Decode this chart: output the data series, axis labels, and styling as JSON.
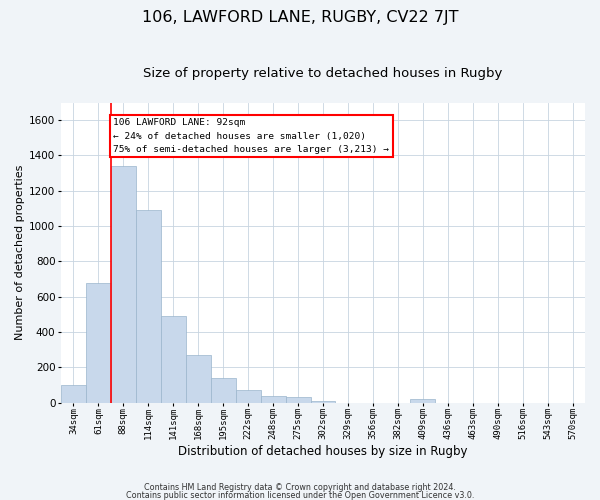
{
  "title1": "106, LAWFORD LANE, RUGBY, CV22 7JT",
  "title2": "Size of property relative to detached houses in Rugby",
  "xlabel": "Distribution of detached houses by size in Rugby",
  "ylabel": "Number of detached properties",
  "categories": [
    "34sqm",
    "61sqm",
    "88sqm",
    "114sqm",
    "141sqm",
    "168sqm",
    "195sqm",
    "222sqm",
    "248sqm",
    "275sqm",
    "302sqm",
    "329sqm",
    "356sqm",
    "382sqm",
    "409sqm",
    "436sqm",
    "463sqm",
    "490sqm",
    "516sqm",
    "543sqm",
    "570sqm"
  ],
  "values": [
    100,
    680,
    1340,
    1090,
    490,
    270,
    140,
    70,
    35,
    30,
    10,
    0,
    0,
    0,
    20,
    0,
    0,
    0,
    0,
    0,
    0
  ],
  "bar_color": "#c8d8eb",
  "bar_edge_color": "#9ab5cc",
  "red_line_index": 2,
  "ylim": [
    0,
    1700
  ],
  "yticks": [
    0,
    200,
    400,
    600,
    800,
    1000,
    1200,
    1400,
    1600
  ],
  "annotation_text": "106 LAWFORD LANE: 92sqm\n← 24% of detached houses are smaller (1,020)\n75% of semi-detached houses are larger (3,213) →",
  "footer1": "Contains HM Land Registry data © Crown copyright and database right 2024.",
  "footer2": "Contains public sector information licensed under the Open Government Licence v3.0.",
  "background_color": "#f0f4f8",
  "plot_background_color": "#ffffff",
  "grid_color": "#c8d4e0",
  "title1_fontsize": 11.5,
  "title2_fontsize": 9.5,
  "xlabel_fontsize": 8.5,
  "ylabel_fontsize": 8
}
